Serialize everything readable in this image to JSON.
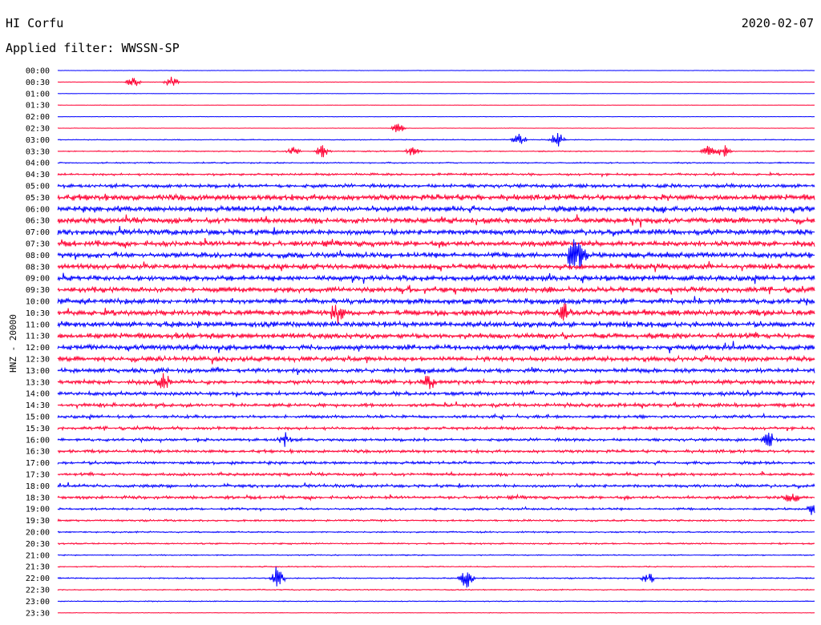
{
  "header": {
    "station": "HI Corfu",
    "date": "2020-02-07",
    "filter_label": "Applied filter: WWSSN-SP"
  },
  "chart_data": {
    "type": "line",
    "title": "HI Corfu",
    "ylabel": "HNZ - 20000",
    "row_labels": [
      "00:00",
      "00:30",
      "01:00",
      "01:30",
      "02:00",
      "02:30",
      "03:00",
      "03:30",
      "04:00",
      "04:30",
      "05:00",
      "05:30",
      "06:00",
      "06:30",
      "07:00",
      "07:30",
      "08:00",
      "08:30",
      "09:00",
      "09:30",
      "10:00",
      "10:30",
      "11:00",
      "11:30",
      "12:00",
      "12:30",
      "13:00",
      "13:30",
      "14:00",
      "14:30",
      "15:00",
      "15:30",
      "16:00",
      "16:30",
      "17:00",
      "17:30",
      "18:00",
      "18:30",
      "19:00",
      "19:30",
      "20:00",
      "20:30",
      "21:00",
      "21:30",
      "22:00",
      "22:30",
      "23:00",
      "23:30"
    ],
    "trace_colors": [
      "#0000ff",
      "#ff0033"
    ],
    "row_noise_level": [
      0.2,
      0.2,
      0.2,
      0.2,
      0.2,
      0.2,
      0.5,
      0.6,
      0.7,
      1.2,
      2.0,
      3.2,
      3.2,
      3.0,
      3.0,
      3.0,
      3.0,
      3.0,
      3.0,
      3.0,
      3.0,
      3.2,
      3.0,
      3.0,
      2.8,
      2.6,
      2.4,
      2.2,
      2.0,
      2.0,
      1.6,
      1.6,
      1.6,
      1.6,
      1.6,
      1.5,
      1.6,
      1.6,
      1.2,
      1.0,
      0.8,
      0.8,
      0.6,
      0.6,
      0.7,
      0.6,
      0.5,
      0.3
    ],
    "events": [
      {
        "row": 1,
        "t": 0.1,
        "amp": 7
      },
      {
        "row": 1,
        "t": 0.15,
        "amp": 7
      },
      {
        "row": 5,
        "t": 0.45,
        "amp": 7
      },
      {
        "row": 6,
        "t": 0.61,
        "amp": 8
      },
      {
        "row": 6,
        "t": 0.66,
        "amp": 10
      },
      {
        "row": 7,
        "t": 0.31,
        "amp": 6
      },
      {
        "row": 7,
        "t": 0.35,
        "amp": 9
      },
      {
        "row": 7,
        "t": 0.47,
        "amp": 8
      },
      {
        "row": 7,
        "t": 0.86,
        "amp": 7
      },
      {
        "row": 7,
        "t": 0.88,
        "amp": 8
      },
      {
        "row": 16,
        "t": 0.68,
        "amp": 18
      },
      {
        "row": 16,
        "t": 0.69,
        "amp": 14
      },
      {
        "row": 21,
        "t": 0.37,
        "amp": 14
      },
      {
        "row": 21,
        "t": 0.67,
        "amp": 10
      },
      {
        "row": 27,
        "t": 0.14,
        "amp": 10
      },
      {
        "row": 27,
        "t": 0.49,
        "amp": 8
      },
      {
        "row": 32,
        "t": 0.3,
        "amp": 9
      },
      {
        "row": 32,
        "t": 0.94,
        "amp": 9
      },
      {
        "row": 37,
        "t": 0.97,
        "amp": 10
      },
      {
        "row": 38,
        "t": 1.0,
        "amp": 10
      },
      {
        "row": 44,
        "t": 0.29,
        "amp": 16
      },
      {
        "row": 44,
        "t": 0.54,
        "amp": 16
      },
      {
        "row": 44,
        "t": 0.78,
        "amp": 8
      }
    ]
  }
}
